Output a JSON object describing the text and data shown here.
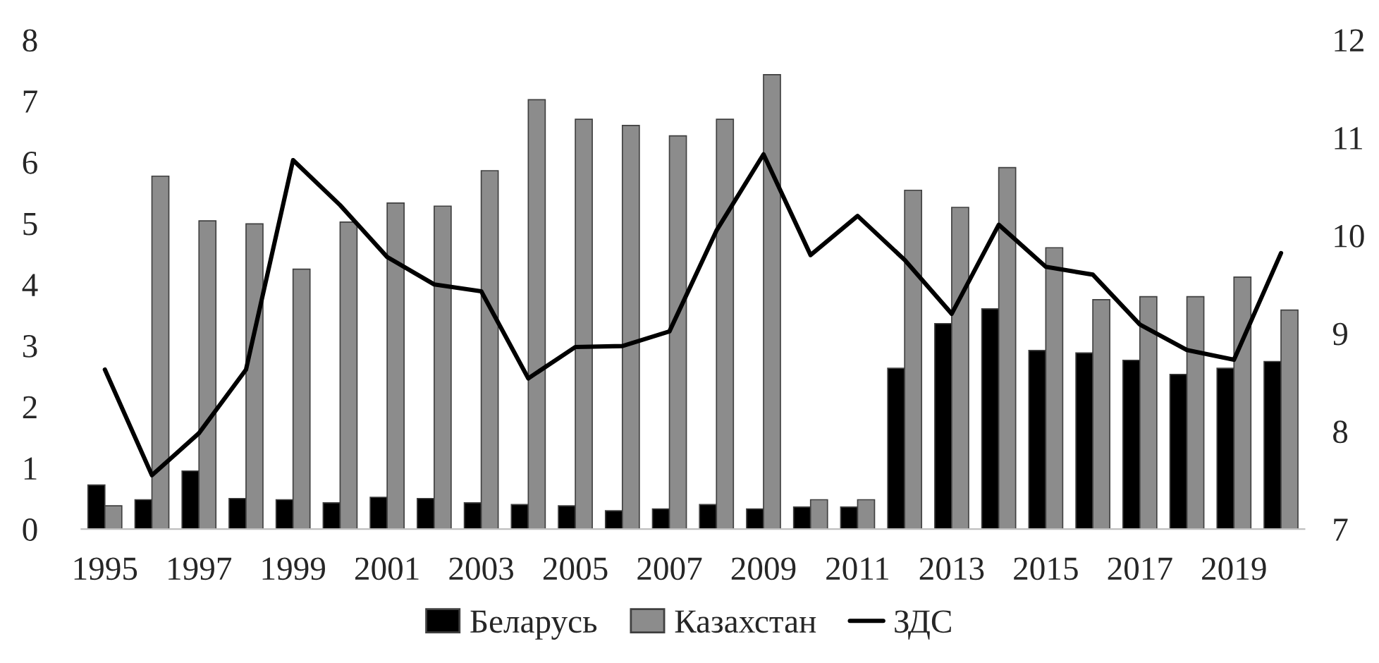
{
  "chart_data": {
    "type": "bar",
    "categories": [
      "1995",
      null,
      "1997",
      null,
      "1999",
      null,
      "2001",
      null,
      "2003",
      null,
      "2005",
      null,
      "2007",
      null,
      "2009",
      null,
      "2011",
      null,
      "2013",
      null,
      "2015",
      null,
      "2017",
      null,
      "2019",
      null
    ],
    "series": [
      {
        "name": "Беларусь",
        "color": "#000000",
        "values": [
          0.72,
          0.48,
          0.95,
          0.5,
          0.48,
          0.43,
          0.52,
          0.5,
          0.43,
          0.4,
          0.38,
          0.3,
          0.33,
          0.4,
          0.33,
          0.36,
          0.36,
          2.63,
          3.36,
          3.6,
          2.92,
          2.88,
          2.76,
          2.53,
          2.63,
          2.74
        ]
      },
      {
        "name": "Казахстан",
        "color": "#8c8c8c",
        "values": [
          0.38,
          5.77,
          5.04,
          4.99,
          4.25,
          5.02,
          5.33,
          5.28,
          5.86,
          7.02,
          6.7,
          6.6,
          6.43,
          6.7,
          7.43,
          0.48,
          0.48,
          5.54,
          5.26,
          5.91,
          4.6,
          3.75,
          3.8,
          3.8,
          4.12,
          3.58
        ]
      },
      {
        "name": "ЗДС",
        "type": "line",
        "axis": "y2",
        "color": "#000000",
        "values": [
          8.63,
          7.55,
          7.98,
          8.63,
          10.77,
          10.31,
          9.78,
          9.5,
          9.43,
          8.54,
          8.86,
          8.87,
          9.02,
          10.05,
          10.83,
          9.8,
          10.2,
          9.75,
          9.2,
          10.11,
          9.68,
          9.6,
          9.09,
          8.83,
          8.73,
          9.82
        ]
      }
    ],
    "ylim": [
      0,
      8
    ],
    "yticks": [
      0,
      1,
      2,
      3,
      4,
      5,
      6,
      7,
      8
    ],
    "y2lim": [
      7,
      12
    ],
    "y2ticks": [
      7,
      8,
      9,
      10,
      11,
      12
    ],
    "grid": false,
    "legend": "bottom"
  }
}
